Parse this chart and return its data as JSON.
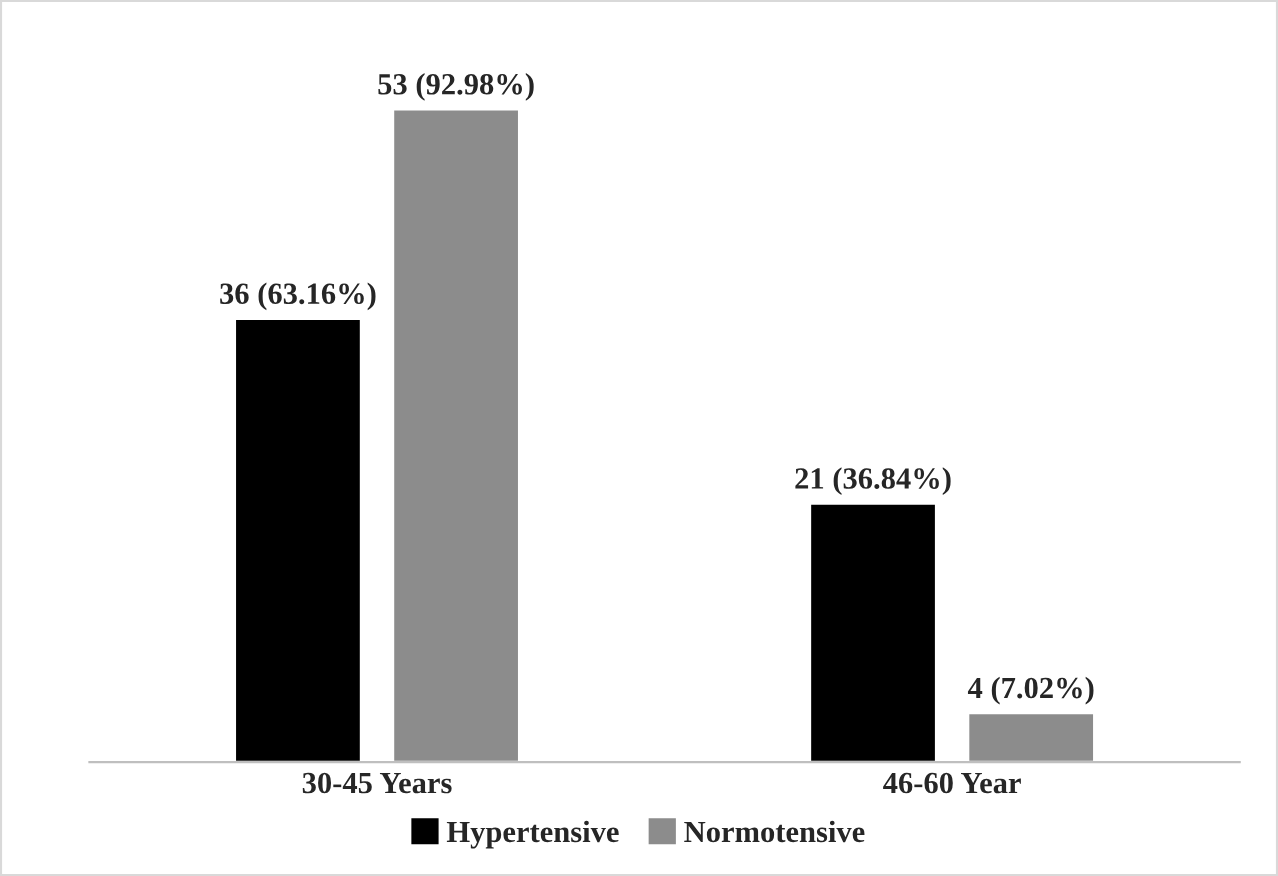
{
  "chart_data": {
    "type": "bar",
    "categories": [
      "30-45 Years",
      "46-60 Year"
    ],
    "series": [
      {
        "name": "Hypertensive",
        "color": "#000000",
        "values": [
          36,
          21
        ],
        "value_labels": [
          "36 (63.16%)",
          "21 (36.84%)"
        ]
      },
      {
        "name": "Normotensive",
        "color": "#8c8c8c",
        "values": [
          53,
          4
        ],
        "value_labels": [
          "53 (92.98%)",
          "4 (7.02%)"
        ]
      }
    ],
    "tick_labels": "x",
    "legend": "bottom"
  }
}
